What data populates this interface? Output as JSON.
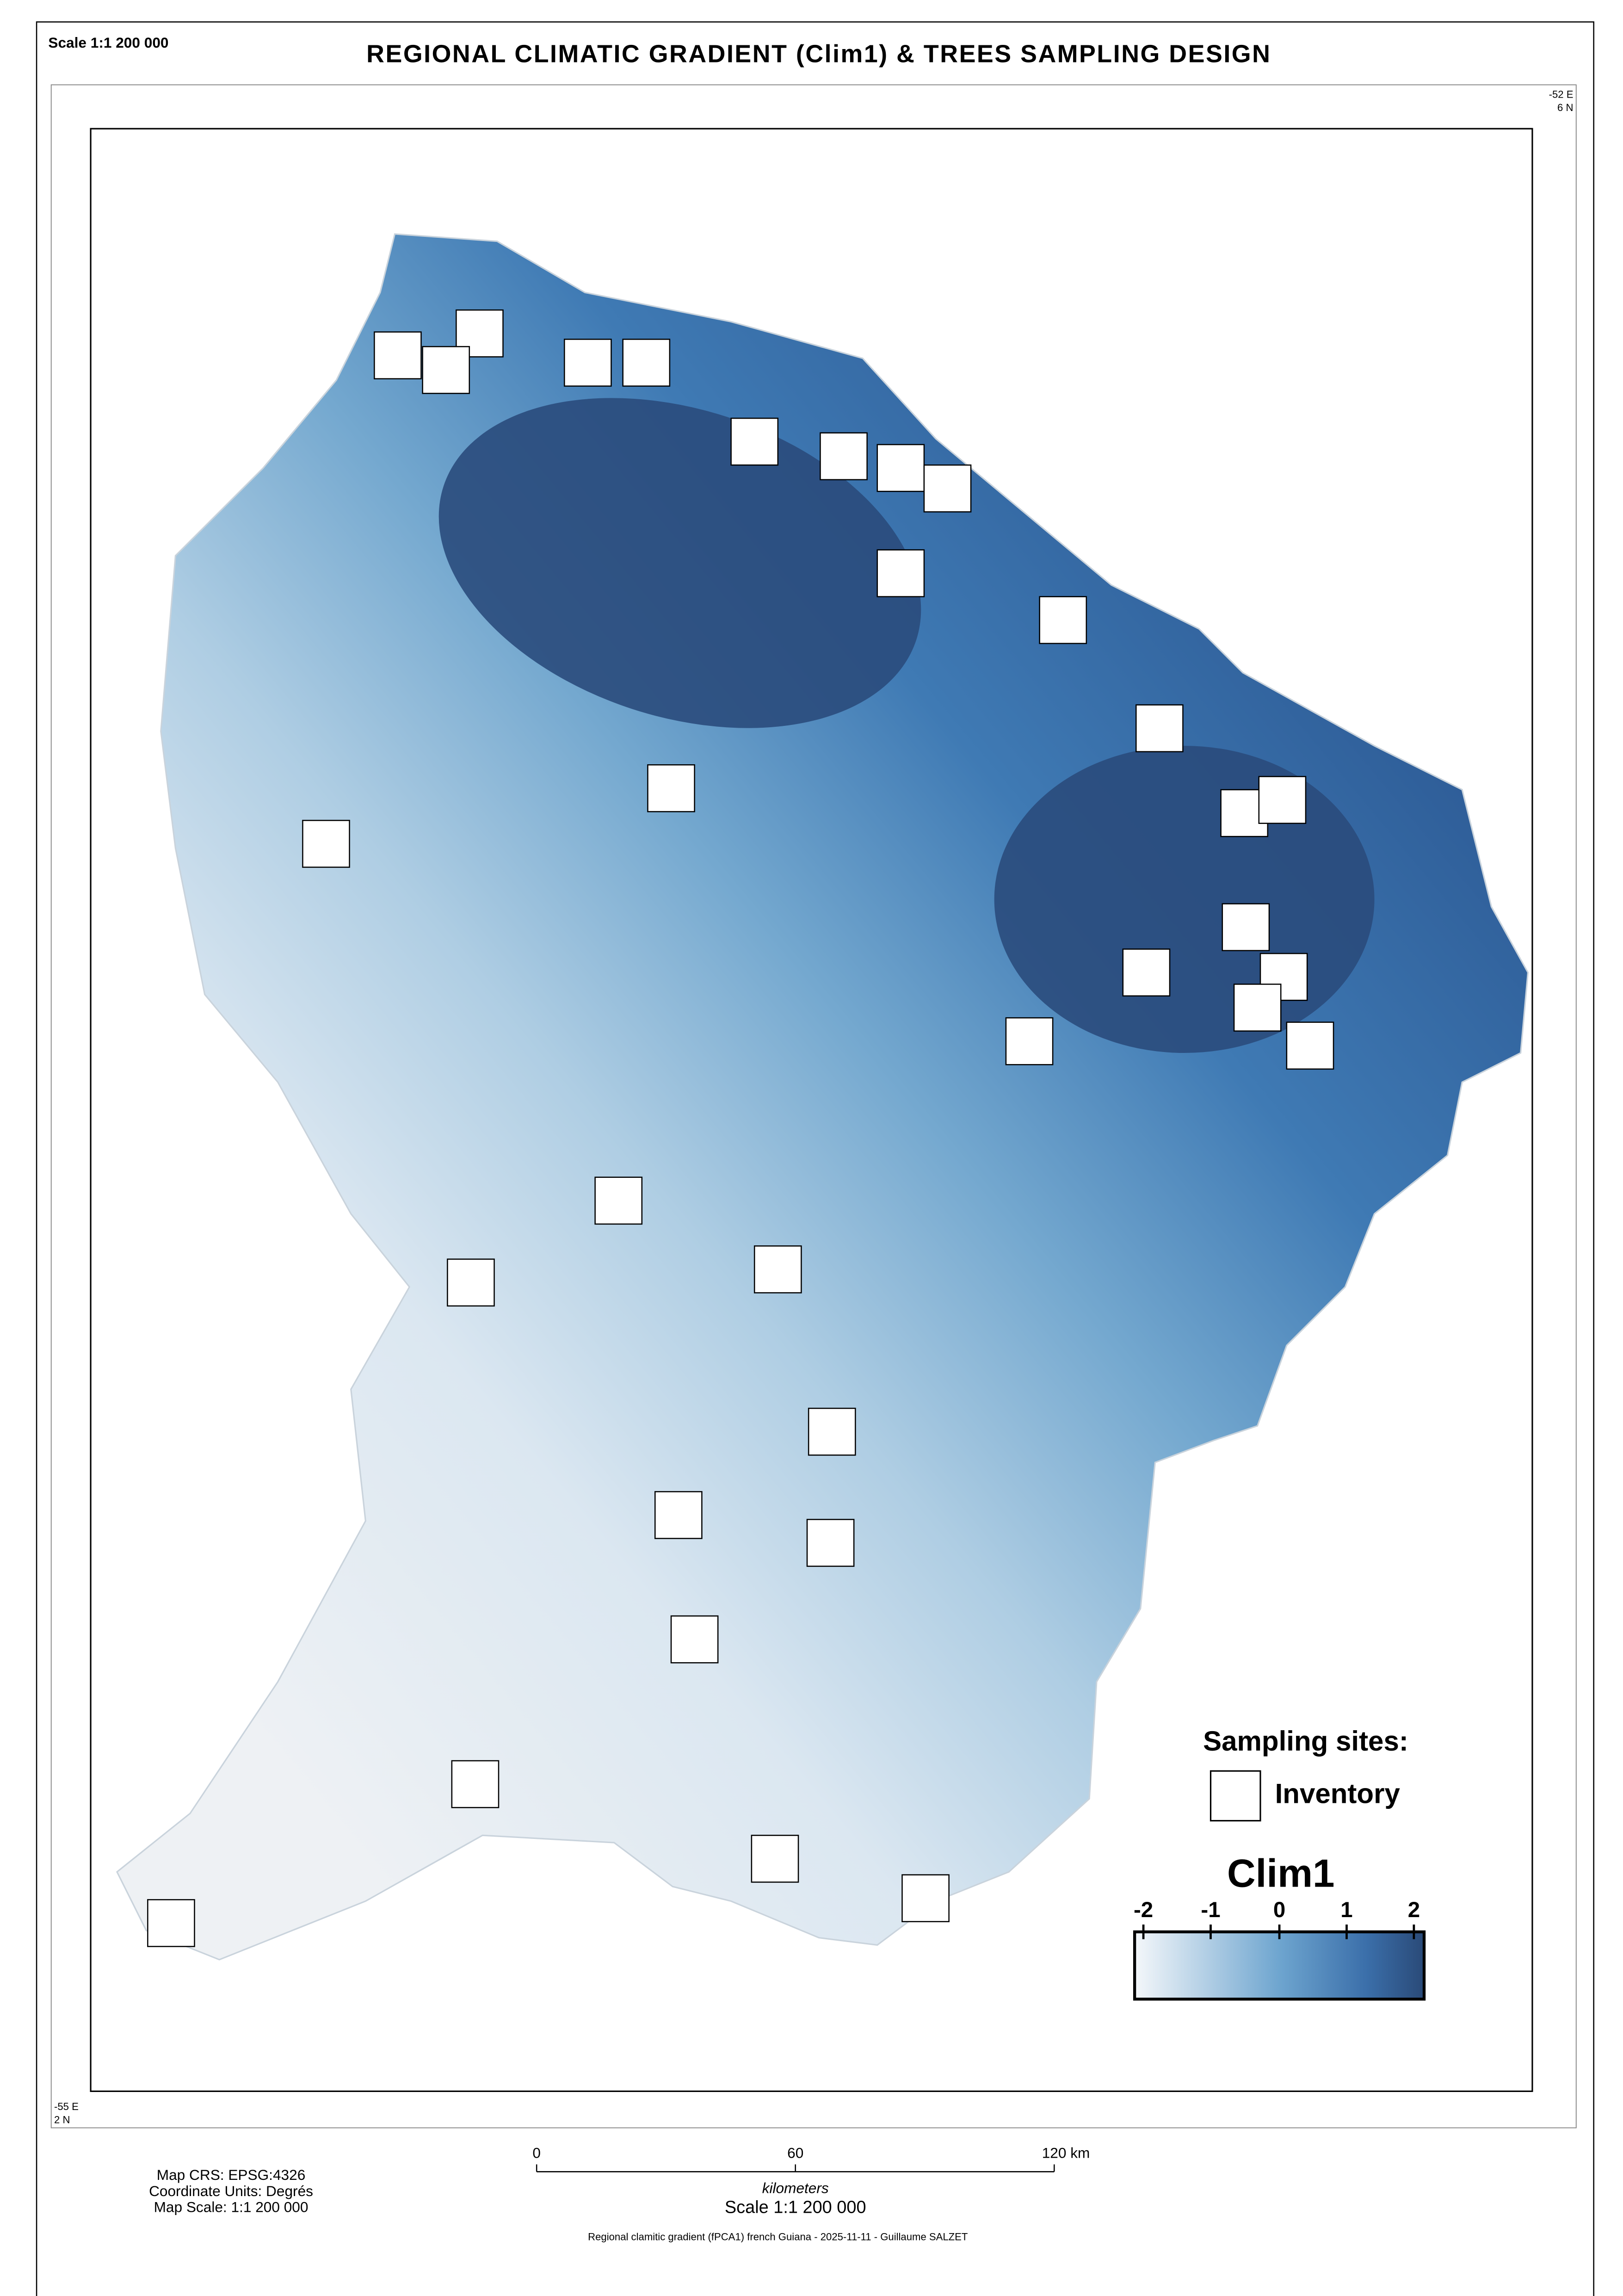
{
  "header": {
    "scale": "Scale 1:1 200 000",
    "title": "REGIONAL CLIMATIC GRADIENT (Clim1) &  TREES SAMPLING DESIGN"
  },
  "corners": {
    "top_right": [
      "-52 E",
      "6 N"
    ],
    "bottom_left": [
      "-55 E",
      "2 N"
    ]
  },
  "legend": {
    "sites_title": "Sampling sites:",
    "inventory": "Inventory",
    "gradient_title": "Clim1",
    "gradient_ticks": [
      "-2",
      "-1",
      "0",
      "1",
      "2"
    ]
  },
  "scale_bar": {
    "ticks": [
      "0",
      "60",
      "120 km"
    ],
    "unit": "kilometers",
    "scale": "Scale 1:1 200 000"
  },
  "footer": {
    "crs": "Map CRS: EPSG:4326",
    "units": "Coordinate Units: Degrés",
    "map_scale": "Map Scale:  1:1 200 000",
    "credit": "Regional clamitic gradient (fPCA1) french Guiana  - 2025-11-11 - Guillaume SALZET"
  }
}
